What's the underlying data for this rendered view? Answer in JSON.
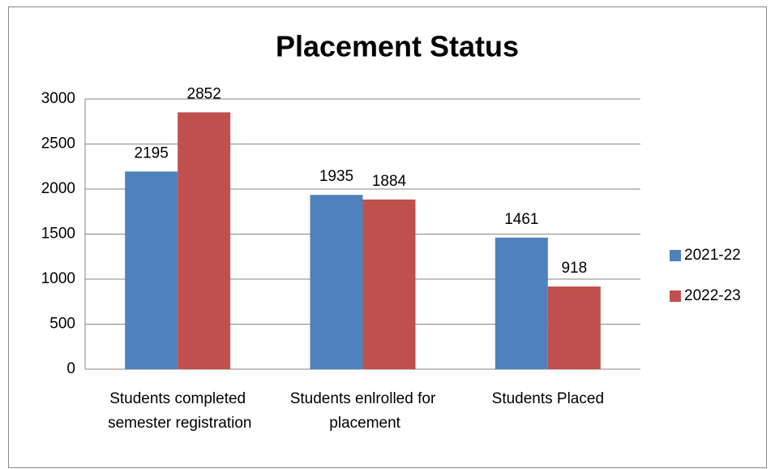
{
  "chart_data": {
    "type": "bar",
    "title": "Placement Status",
    "categories": [
      "Students completed semester registration",
      "Students enlrolled for placement",
      "Students Placed"
    ],
    "series": [
      {
        "name": "2021-22",
        "color": "#4f81bd",
        "values": [
          2195,
          1935,
          1461
        ]
      },
      {
        "name": "2022-23",
        "color": "#c0504d",
        "values": [
          2852,
          1884,
          918
        ]
      }
    ],
    "ylim": [
      0,
      3000
    ],
    "yticks": [
      0,
      500,
      1000,
      1500,
      2000,
      2500,
      3000
    ],
    "grid": true,
    "legend": "right"
  }
}
